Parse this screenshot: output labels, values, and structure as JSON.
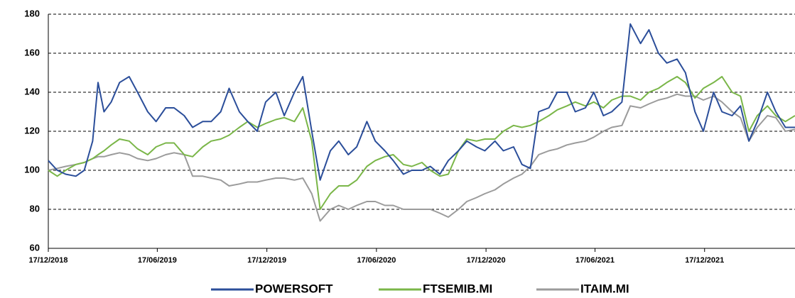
{
  "chart_data": {
    "type": "line",
    "x": [
      "2018-12-17",
      "2019-01-01",
      "2019-01-15",
      "2019-02-01",
      "2019-02-15",
      "2019-03-01",
      "2019-03-10",
      "2019-03-20",
      "2019-04-01",
      "2019-04-15",
      "2019-05-01",
      "2019-05-15",
      "2019-06-01",
      "2019-06-15",
      "2019-07-01",
      "2019-07-15",
      "2019-08-01",
      "2019-08-15",
      "2019-09-01",
      "2019-09-15",
      "2019-10-01",
      "2019-10-15",
      "2019-11-01",
      "2019-11-15",
      "2019-12-01",
      "2019-12-15",
      "2020-01-01",
      "2020-01-15",
      "2020-02-01",
      "2020-02-15",
      "2020-03-01",
      "2020-03-15",
      "2020-04-01",
      "2020-04-15",
      "2020-05-01",
      "2020-05-15",
      "2020-06-01",
      "2020-06-15",
      "2020-07-01",
      "2020-07-15",
      "2020-08-01",
      "2020-08-15",
      "2020-09-01",
      "2020-09-15",
      "2020-10-01",
      "2020-10-15",
      "2020-11-01",
      "2020-11-15",
      "2020-12-01",
      "2020-12-15",
      "2021-01-01",
      "2021-01-15",
      "2021-02-01",
      "2021-02-15",
      "2021-03-01",
      "2021-03-15",
      "2021-04-01",
      "2021-04-15",
      "2021-05-01",
      "2021-05-15",
      "2021-06-01",
      "2021-06-15",
      "2021-07-01",
      "2021-07-15",
      "2021-08-01",
      "2021-08-15",
      "2021-09-01",
      "2021-09-15",
      "2021-10-01",
      "2021-10-15",
      "2021-11-01",
      "2021-11-15",
      "2021-12-01",
      "2021-12-15",
      "2022-01-01",
      "2022-01-15",
      "2022-02-01",
      "2022-02-15",
      "2022-03-01",
      "2022-03-15",
      "2022-04-01",
      "2022-04-15",
      "2022-05-01",
      "2022-05-17"
    ],
    "series": [
      {
        "name": "POWERSOFT",
        "color": "#2b4e9a",
        "values": [
          105,
          100,
          98,
          97,
          100,
          115,
          145,
          130,
          135,
          145,
          148,
          140,
          130,
          125,
          132,
          132,
          128,
          122,
          125,
          125,
          130,
          142,
          130,
          125,
          120,
          135,
          140,
          128,
          140,
          148,
          120,
          95,
          110,
          115,
          108,
          112,
          125,
          115,
          110,
          105,
          98,
          100,
          100,
          102,
          98,
          105,
          110,
          115,
          112,
          110,
          115,
          110,
          112,
          103,
          101,
          130,
          132,
          140,
          140,
          130,
          132,
          140,
          128,
          130,
          135,
          175,
          165,
          172,
          160,
          155,
          157,
          150,
          130,
          120,
          140,
          130,
          128,
          133,
          115,
          125,
          140,
          130,
          122,
          122
        ]
      },
      {
        "name": "FTSEMIB.MI",
        "color": "#7ab648",
        "values": [
          100,
          97,
          100,
          103,
          104,
          106,
          108,
          110,
          113,
          116,
          115,
          111,
          108,
          112,
          114,
          114,
          108,
          107,
          112,
          115,
          116,
          118,
          122,
          125,
          122,
          124,
          126,
          127,
          125,
          132,
          115,
          80,
          88,
          92,
          92,
          95,
          102,
          105,
          107,
          108,
          103,
          102,
          104,
          100,
          97,
          98,
          110,
          116,
          115,
          116,
          116,
          120,
          123,
          122,
          123,
          125,
          128,
          131,
          133,
          135,
          133,
          135,
          132,
          136,
          138,
          138,
          136,
          140,
          142,
          145,
          148,
          145,
          137,
          142,
          145,
          148,
          140,
          138,
          120,
          128,
          133,
          128,
          125,
          128
        ]
      },
      {
        "name": "ITAIM.MI",
        "color": "#9b9b9b",
        "values": [
          100,
          101,
          102,
          103,
          104,
          106,
          107,
          107,
          108,
          109,
          108,
          106,
          105,
          106,
          108,
          109,
          108,
          97,
          97,
          96,
          95,
          92,
          93,
          94,
          94,
          95,
          96,
          96,
          95,
          96,
          88,
          74,
          80,
          82,
          80,
          82,
          84,
          84,
          82,
          82,
          80,
          80,
          80,
          80,
          78,
          76,
          80,
          84,
          86,
          88,
          90,
          93,
          96,
          98,
          102,
          108,
          110,
          111,
          113,
          114,
          115,
          117,
          120,
          122,
          123,
          133,
          132,
          134,
          136,
          137,
          139,
          138,
          138,
          136,
          138,
          135,
          130,
          127,
          115,
          122,
          128,
          127,
          120,
          121
        ]
      }
    ],
    "xlim": [
      "2018-12-17",
      "2022-05-17"
    ],
    "xticks": [
      {
        "value": "2018-12-17",
        "label": "17/12/2018"
      },
      {
        "value": "2019-06-17",
        "label": "17/06/2019"
      },
      {
        "value": "2019-12-17",
        "label": "17/12/2019"
      },
      {
        "value": "2020-06-17",
        "label": "17/06/2020"
      },
      {
        "value": "2020-12-17",
        "label": "17/12/2020"
      },
      {
        "value": "2021-06-17",
        "label": "17/06/2021"
      },
      {
        "value": "2021-12-17",
        "label": "17/12/2021"
      }
    ],
    "ylim": [
      60,
      180
    ],
    "yticks": [
      60,
      80,
      100,
      120,
      140,
      160,
      180
    ],
    "grid": true,
    "legend": "bottom"
  }
}
